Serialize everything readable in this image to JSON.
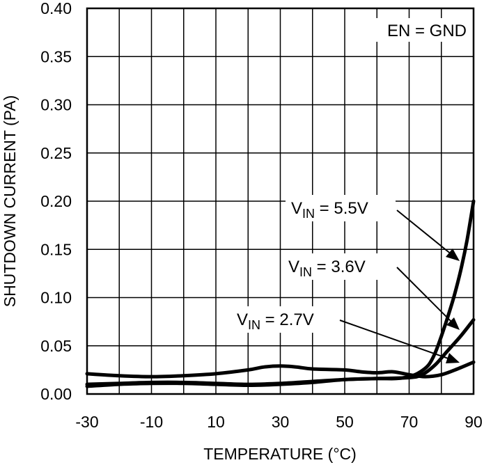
{
  "chart_data": {
    "type": "line",
    "title": "",
    "xlabel": "TEMPERATURE (°C)",
    "ylabel": "SHUTDOWN CURRENT (PA)",
    "xlim": [
      -30,
      90
    ],
    "ylim": [
      0,
      0.4
    ],
    "xticks": [
      -30,
      -10,
      10,
      30,
      50,
      70,
      90
    ],
    "xtick_labels": [
      "-30",
      "-10",
      "10",
      "30",
      "50",
      "70",
      "90"
    ],
    "xgrid": [
      -30,
      -20,
      -10,
      0,
      10,
      20,
      30,
      40,
      50,
      60,
      70,
      80,
      90
    ],
    "yticks": [
      0,
      0.05,
      0.1,
      0.15,
      0.2,
      0.25,
      0.3,
      0.35,
      0.4
    ],
    "ytick_labels": [
      "0.00",
      "0.05",
      "0.10",
      "0.15",
      "0.20",
      "0.25",
      "0.30",
      "0.35",
      "0.40"
    ],
    "grid": true,
    "condition_label": "EN = GND",
    "series": [
      {
        "name": "VIN = 5.5V",
        "label_main": "V",
        "label_sub": "IN",
        "label_rest": " = 5.5V",
        "x": [
          -30,
          -20,
          -10,
          0,
          10,
          20,
          30,
          40,
          50,
          60,
          66,
          70,
          73,
          76,
          78,
          80,
          82,
          84,
          86,
          88,
          90
        ],
        "y": [
          0.008,
          0.01,
          0.011,
          0.011,
          0.01,
          0.009,
          0.01,
          0.012,
          0.015,
          0.016,
          0.016,
          0.018,
          0.022,
          0.03,
          0.042,
          0.06,
          0.08,
          0.102,
          0.128,
          0.16,
          0.2
        ]
      },
      {
        "name": "VIN = 3.6V",
        "label_main": "V",
        "label_sub": "IN",
        "label_rest": " = 3.6V",
        "x": [
          -30,
          -20,
          -10,
          0,
          10,
          20,
          30,
          40,
          50,
          60,
          70,
          74,
          78,
          82,
          86,
          90
        ],
        "y": [
          0.01,
          0.011,
          0.012,
          0.012,
          0.011,
          0.01,
          0.011,
          0.013,
          0.015,
          0.016,
          0.017,
          0.02,
          0.03,
          0.045,
          0.06,
          0.077
        ]
      },
      {
        "name": "VIN = 2.7V",
        "label_main": "V",
        "label_sub": "IN",
        "label_rest": " = 2.7V",
        "x": [
          -30,
          -20,
          -10,
          0,
          10,
          20,
          25,
          30,
          35,
          40,
          50,
          55,
          60,
          65,
          70,
          75,
          80,
          85,
          90
        ],
        "y": [
          0.021,
          0.019,
          0.018,
          0.019,
          0.021,
          0.025,
          0.028,
          0.029,
          0.028,
          0.026,
          0.025,
          0.023,
          0.022,
          0.023,
          0.02,
          0.018,
          0.02,
          0.026,
          0.033
        ]
      }
    ]
  }
}
